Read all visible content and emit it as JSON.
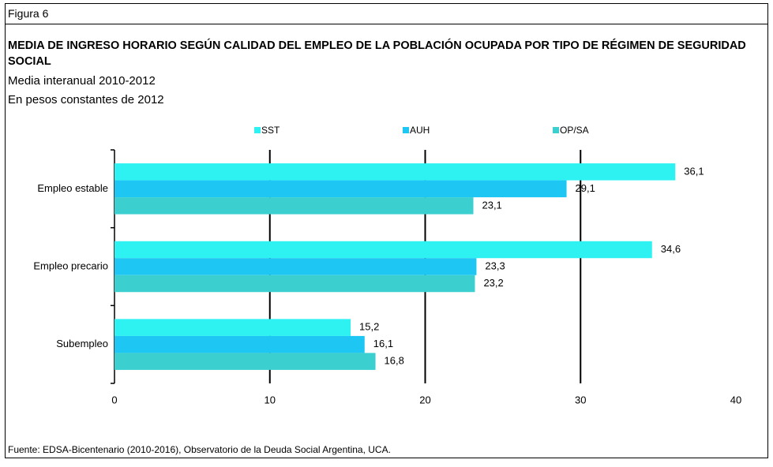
{
  "figure_label": "Figura 6",
  "chart_data": {
    "type": "hbar",
    "title": "MEDIA DE INGRESO HORARIO SEGÚN CALIDAD DEL EMPLEO DE LA POBLACIÓN OCUPADA POR TIPO DE RÉGIMEN DE SEGURIDAD SOCIAL",
    "subtitles": [
      "Media interanual 2010-2012",
      "En pesos constantes de 2012"
    ],
    "categories": [
      "Empleo estable",
      "Empleo precario",
      "Subempleo"
    ],
    "series": [
      {
        "name": "SST",
        "color": "#2ef2f2",
        "values": [
          36.1,
          34.6,
          15.2
        ],
        "value_labels": [
          "36,1",
          "34,6",
          "15,2"
        ]
      },
      {
        "name": "AUH",
        "color": "#1ec6f4",
        "values": [
          29.1,
          23.3,
          16.1
        ],
        "value_labels": [
          "29,1",
          "23,3",
          "16,1"
        ]
      },
      {
        "name": "OP/SA",
        "color": "#3ccfcf",
        "values": [
          23.1,
          23.2,
          16.8
        ],
        "value_labels": [
          "23,1",
          "23,2",
          "16,8"
        ]
      }
    ],
    "xlim": [
      0,
      40
    ],
    "xticks": [
      0,
      10,
      20,
      30,
      40
    ],
    "grid": true,
    "legend": "top",
    "source": "Fuente: EDSA-Bicentenario (2010-2016), Observatorio de la Deuda Social Argentina, UCA."
  }
}
